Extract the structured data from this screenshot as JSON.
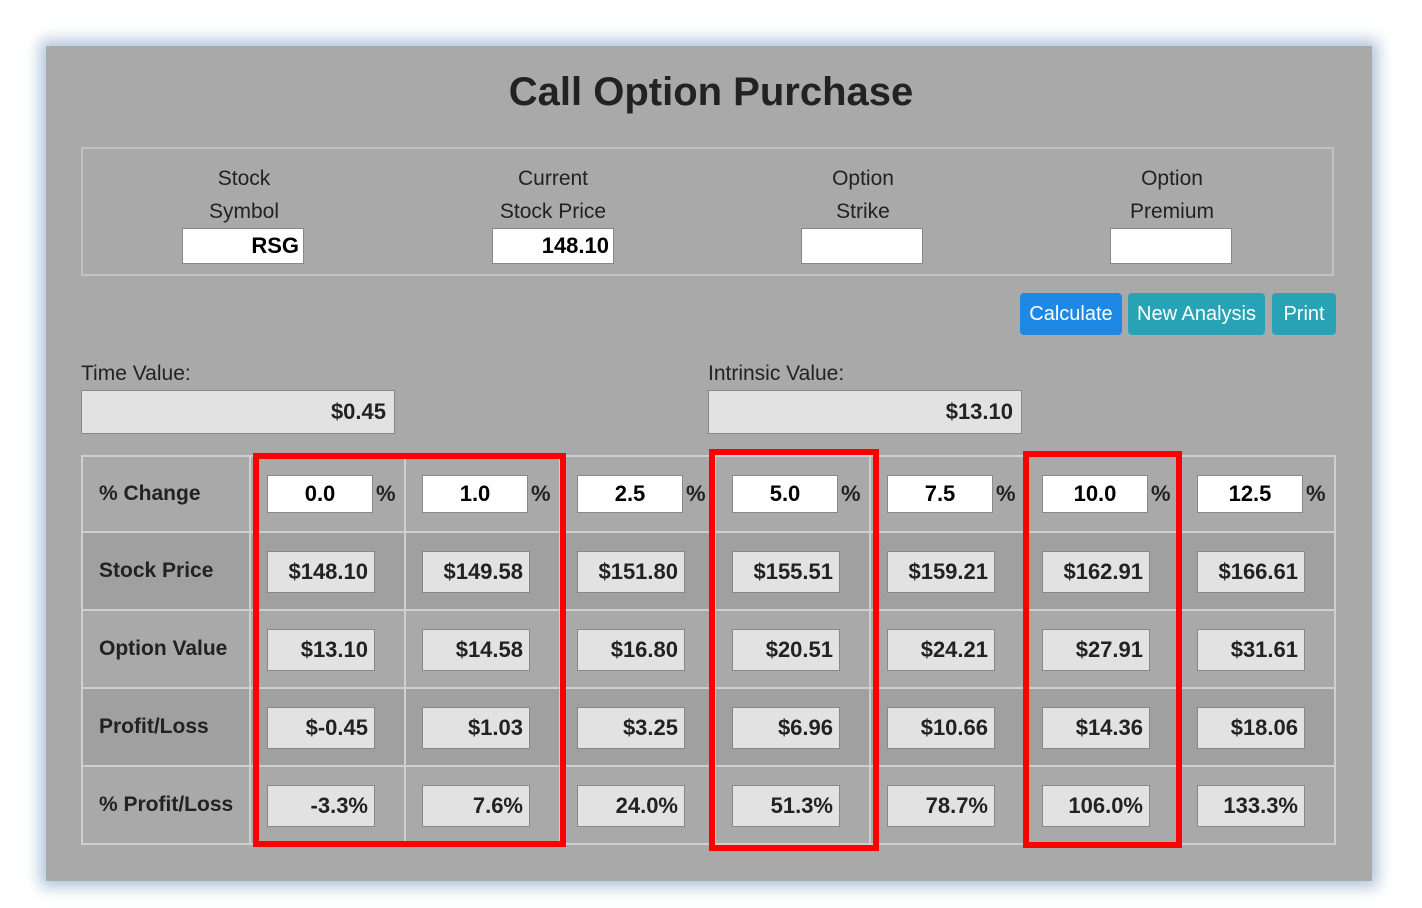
{
  "title": "Call Option Purchase",
  "fields": [
    {
      "label_line1": "Stock",
      "label_line2": "Symbol",
      "value": "RSG"
    },
    {
      "label_line1": "Current",
      "label_line2": "Stock Price",
      "value": "148.10"
    },
    {
      "label_line1": "Option",
      "label_line2": "Strike",
      "value": ""
    },
    {
      "label_line1": "Option",
      "label_line2": "Premium",
      "value": ""
    }
  ],
  "buttons": {
    "calculate": "Calculate",
    "new_analysis": "New Analysis",
    "print": "Print"
  },
  "time_value": {
    "label": "Time Value:",
    "value": "$0.45"
  },
  "intrinsic_value": {
    "label": "Intrinsic Value:",
    "value": "$13.10"
  },
  "table": {
    "pct_label": "% Change",
    "pct_sign": "%",
    "pct_values": [
      "0.0",
      "1.0",
      "2.5",
      "5.0",
      "7.5",
      "10.0",
      "12.5"
    ],
    "rows": [
      {
        "label": "Stock Price",
        "values": [
          "$148.10",
          "$149.58",
          "$151.80",
          "$155.51",
          "$159.21",
          "$162.91",
          "$166.61"
        ]
      },
      {
        "label": "Option Value",
        "values": [
          "$13.10",
          "$14.58",
          "$16.80",
          "$20.51",
          "$24.21",
          "$27.91",
          "$31.61"
        ]
      },
      {
        "label": "Profit/Loss",
        "values": [
          "$-0.45",
          "$1.03",
          "$3.25",
          "$6.96",
          "$10.66",
          "$14.36",
          "$18.06"
        ]
      },
      {
        "label": "% Profit/Loss",
        "values": [
          "-3.3%",
          "7.6%",
          "24.0%",
          "51.3%",
          "78.7%",
          "106.0%",
          "133.3%"
        ]
      }
    ]
  },
  "highlight_color": "#ff0000"
}
